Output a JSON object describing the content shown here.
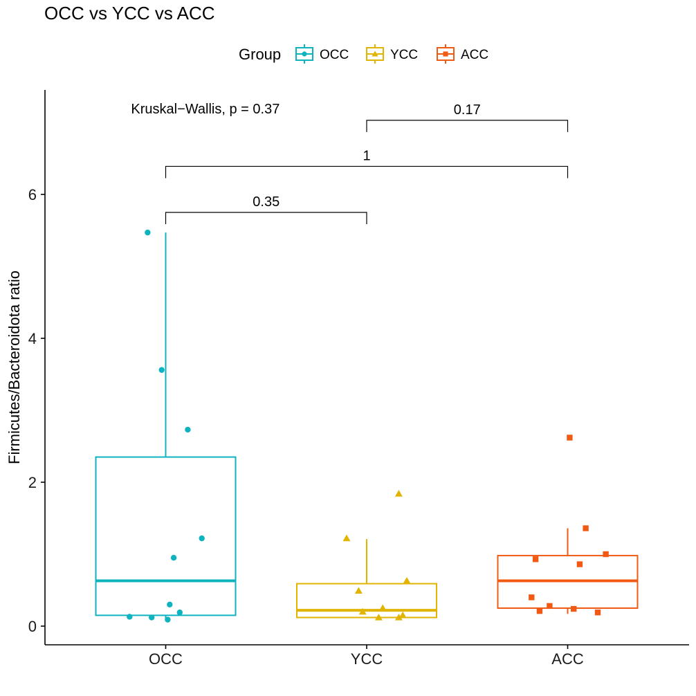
{
  "chart_data": {
    "type": "box",
    "title": "OCC vs YCC vs ACC",
    "ylabel": "Firmicutes/Bacteroidota ratio",
    "xlabel": "",
    "categories": [
      "OCC",
      "YCC",
      "ACC"
    ],
    "ylim": [
      -0.28,
      7.3
    ],
    "yticks": [
      0,
      2,
      4,
      6
    ],
    "legend": {
      "title": "Group",
      "position": "top",
      "entries": [
        "OCC",
        "YCC",
        "ACC"
      ]
    },
    "colors": {
      "OCC": "#0db3bf",
      "YCC": "#e0b400",
      "ACC": "#f05a14"
    },
    "markers": {
      "OCC": "circle",
      "YCC": "triangle",
      "ACC": "square"
    },
    "boxes": [
      {
        "group": "OCC",
        "whisker_low": 0.1,
        "q1": 0.15,
        "median": 0.63,
        "q3": 2.35,
        "whisker_high": 5.47
      },
      {
        "group": "YCC",
        "whisker_low": 0.11,
        "q1": 0.12,
        "median": 0.22,
        "q3": 0.59,
        "whisker_high": 1.21
      },
      {
        "group": "ACC",
        "whisker_low": 0.17,
        "q1": 0.25,
        "median": 0.63,
        "q3": 0.98,
        "whisker_high": 1.36
      }
    ],
    "points": [
      {
        "group": "OCC",
        "xoff": -0.09,
        "y": 5.47
      },
      {
        "group": "OCC",
        "xoff": -0.02,
        "y": 3.56
      },
      {
        "group": "OCC",
        "xoff": 0.11,
        "y": 2.73
      },
      {
        "group": "OCC",
        "xoff": 0.18,
        "y": 1.22
      },
      {
        "group": "OCC",
        "xoff": 0.04,
        "y": 0.95
      },
      {
        "group": "OCC",
        "xoff": 0.02,
        "y": 0.3
      },
      {
        "group": "OCC",
        "xoff": 0.07,
        "y": 0.19
      },
      {
        "group": "OCC",
        "xoff": -0.18,
        "y": 0.13
      },
      {
        "group": "OCC",
        "xoff": -0.07,
        "y": 0.12
      },
      {
        "group": "OCC",
        "xoff": 0.01,
        "y": 0.09
      },
      {
        "group": "YCC",
        "xoff": 0.16,
        "y": 1.84
      },
      {
        "group": "YCC",
        "xoff": -0.1,
        "y": 1.22
      },
      {
        "group": "YCC",
        "xoff": 0.2,
        "y": 0.63
      },
      {
        "group": "YCC",
        "xoff": -0.04,
        "y": 0.49
      },
      {
        "group": "YCC",
        "xoff": 0.08,
        "y": 0.25
      },
      {
        "group": "YCC",
        "xoff": -0.02,
        "y": 0.2
      },
      {
        "group": "YCC",
        "xoff": 0.18,
        "y": 0.15
      },
      {
        "group": "YCC",
        "xoff": 0.06,
        "y": 0.12
      },
      {
        "group": "YCC",
        "xoff": 0.16,
        "y": 0.12
      },
      {
        "group": "ACC",
        "xoff": 0.01,
        "y": 2.62
      },
      {
        "group": "ACC",
        "xoff": 0.09,
        "y": 1.36
      },
      {
        "group": "ACC",
        "xoff": 0.19,
        "y": 1.0
      },
      {
        "group": "ACC",
        "xoff": -0.16,
        "y": 0.93
      },
      {
        "group": "ACC",
        "xoff": 0.06,
        "y": 0.86
      },
      {
        "group": "ACC",
        "xoff": -0.18,
        "y": 0.4
      },
      {
        "group": "ACC",
        "xoff": -0.09,
        "y": 0.28
      },
      {
        "group": "ACC",
        "xoff": 0.03,
        "y": 0.24
      },
      {
        "group": "ACC",
        "xoff": -0.14,
        "y": 0.21
      },
      {
        "group": "ACC",
        "xoff": 0.15,
        "y": 0.19
      }
    ],
    "annotations": {
      "global_test": {
        "text": "Kruskal−Wallis, p = 0.37",
        "x": 0.26,
        "y": 7.2
      },
      "comparisons": [
        {
          "from": "YCC",
          "to": "ACC",
          "y": 7.03,
          "label": "0.17"
        },
        {
          "from": "OCC",
          "to": "ACC",
          "y": 6.39,
          "label": "1"
        },
        {
          "from": "OCC",
          "to": "YCC",
          "y": 5.75,
          "label": "0.35"
        }
      ]
    }
  }
}
